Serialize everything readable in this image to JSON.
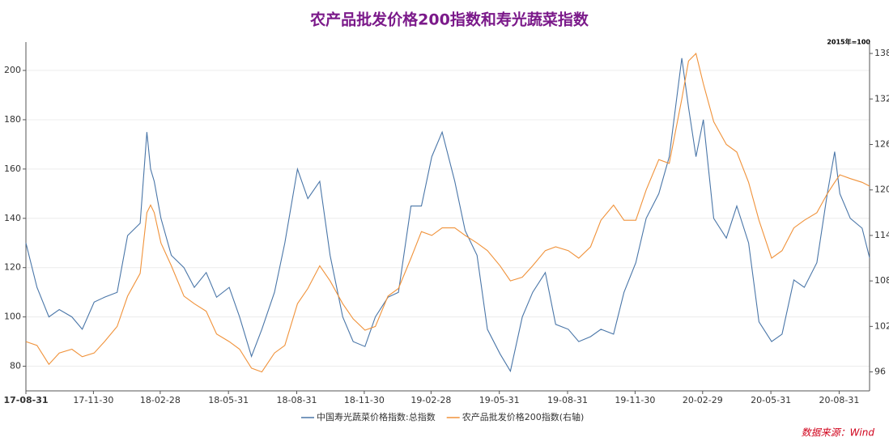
{
  "chart_data": {
    "type": "line",
    "title": "农产品批发价格200指数和寿光蔬菜指数",
    "y2_unit_label": "2015年=100",
    "source": "数据来源：Wind",
    "x": [
      "2017-08-31",
      "2017-09-15",
      "2017-10-01",
      "2017-10-15",
      "2017-11-01",
      "2017-11-15",
      "2017-12-01",
      "2017-12-15",
      "2018-01-01",
      "2018-01-15",
      "2018-02-01",
      "2018-02-10",
      "2018-02-15",
      "2018-02-20",
      "2018-03-01",
      "2018-03-15",
      "2018-04-01",
      "2018-04-15",
      "2018-05-01",
      "2018-05-15",
      "2018-06-01",
      "2018-06-15",
      "2018-07-01",
      "2018-07-15",
      "2018-08-01",
      "2018-08-15",
      "2018-09-01",
      "2018-09-15",
      "2018-10-01",
      "2018-10-15",
      "2018-11-01",
      "2018-11-15",
      "2018-12-01",
      "2018-12-15",
      "2019-01-01",
      "2019-01-15",
      "2019-02-01",
      "2019-02-15",
      "2019-03-01",
      "2019-03-15",
      "2019-04-01",
      "2019-04-15",
      "2019-05-01",
      "2019-05-15",
      "2019-06-01",
      "2019-06-15",
      "2019-07-01",
      "2019-07-15",
      "2019-08-01",
      "2019-08-15",
      "2019-09-01",
      "2019-09-15",
      "2019-10-01",
      "2019-10-15",
      "2019-11-01",
      "2019-11-15",
      "2019-12-01",
      "2019-12-15",
      "2020-01-01",
      "2020-01-15",
      "2020-02-01",
      "2020-02-10",
      "2020-02-20",
      "2020-03-01",
      "2020-03-15",
      "2020-04-01",
      "2020-04-15",
      "2020-05-01",
      "2020-05-15",
      "2020-06-01",
      "2020-06-15",
      "2020-07-01",
      "2020-07-15",
      "2020-08-01",
      "2020-08-15",
      "2020-08-25",
      "2020-09-01",
      "2020-09-15",
      "2020-10-01",
      "2020-10-11"
    ],
    "series": [
      {
        "name": "中国寿光蔬菜价格指数:总指数",
        "color": "#4a76a8",
        "axis": "y",
        "values": [
          130,
          112,
          100,
          103,
          100,
          95,
          106,
          108,
          110,
          133,
          138,
          175,
          160,
          155,
          140,
          125,
          120,
          112,
          118,
          108,
          112,
          100,
          84,
          95,
          110,
          130,
          160,
          148,
          155,
          125,
          100,
          90,
          88,
          100,
          108,
          110,
          145,
          145,
          165,
          175,
          155,
          135,
          125,
          95,
          85,
          78,
          100,
          110,
          118,
          97,
          95,
          90,
          92,
          95,
          93,
          110,
          122,
          140,
          150,
          165,
          205,
          185,
          165,
          180,
          140,
          132,
          145,
          130,
          98,
          90,
          93,
          115,
          112,
          122,
          150,
          167,
          150,
          140,
          136,
          124
        ]
      },
      {
        "name": "农产品批发价格200指数(右轴)",
        "color": "#f0923a",
        "axis": "y2",
        "values": [
          100,
          99.5,
          97,
          98.5,
          99,
          98,
          98.5,
          100,
          102,
          106,
          109,
          117,
          118,
          117,
          113,
          110,
          106,
          105,
          104,
          101,
          100,
          99,
          96.5,
          96,
          98.5,
          99.5,
          105,
          107,
          110,
          108,
          105,
          103,
          101.5,
          102,
          106,
          107,
          111,
          114.5,
          114,
          115,
          115,
          114,
          113,
          112,
          110,
          108,
          108.5,
          110,
          112,
          112.5,
          112,
          111,
          112.5,
          116,
          118,
          116,
          116,
          120,
          124,
          123.5,
          132,
          137,
          138,
          134,
          129,
          126,
          125,
          121,
          116,
          111,
          112,
          115,
          116,
          117,
          119.5,
          121,
          122,
          121.5,
          121,
          120.5
        ]
      }
    ],
    "xlim": [
      "2017-08-31",
      "2020-10-11"
    ],
    "xticks": [
      {
        "value": "2017-08-31",
        "label": "17-08-31"
      },
      {
        "value": "2017-11-30",
        "label": "17-11-30"
      },
      {
        "value": "2018-02-28",
        "label": "18-02-28"
      },
      {
        "value": "2018-05-31",
        "label": "18-05-31"
      },
      {
        "value": "2018-08-31",
        "label": "18-08-31"
      },
      {
        "value": "2018-11-30",
        "label": "18-11-30"
      },
      {
        "value": "2019-02-28",
        "label": "19-02-28"
      },
      {
        "value": "2019-05-31",
        "label": "19-05-31"
      },
      {
        "value": "2019-08-31",
        "label": "19-08-31"
      },
      {
        "value": "2019-11-30",
        "label": "19-11-30"
      },
      {
        "value": "2020-02-29",
        "label": "20-02-29"
      },
      {
        "value": "2020-05-31",
        "label": "20-05-31"
      },
      {
        "value": "2020-08-31",
        "label": "20-08-31"
      }
    ],
    "ylim": [
      70,
      211.5
    ],
    "yticks": [
      80,
      100,
      120,
      140,
      160,
      180,
      200
    ],
    "y2lim": [
      93.5,
      139.5
    ],
    "y2ticks": [
      96,
      102,
      108,
      114,
      120,
      126,
      132,
      138
    ],
    "grid": true
  }
}
